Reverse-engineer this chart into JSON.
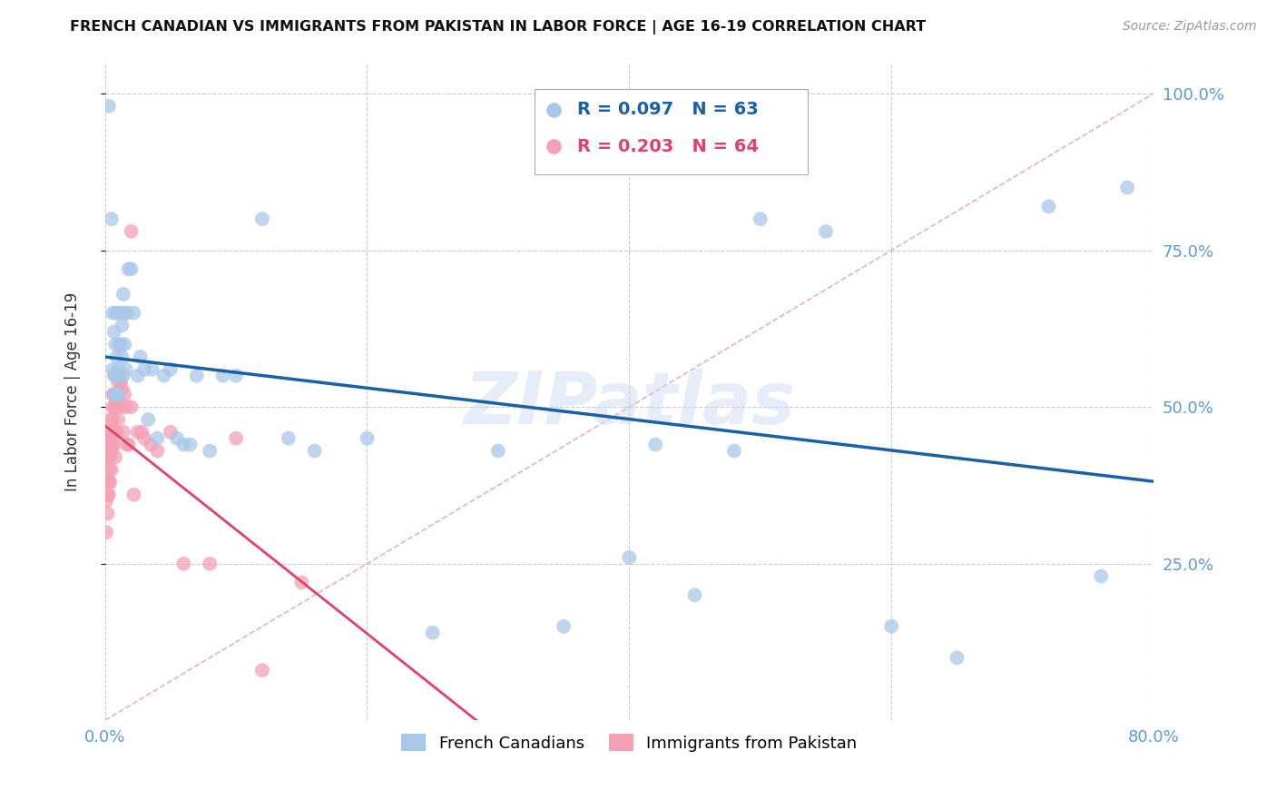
{
  "title": "FRENCH CANADIAN VS IMMIGRANTS FROM PAKISTAN IN LABOR FORCE | AGE 16-19 CORRELATION CHART",
  "source": "Source: ZipAtlas.com",
  "ylabel": "In Labor Force | Age 16-19",
  "legend_blue_label": "French Canadians",
  "legend_pink_label": "Immigrants from Pakistan",
  "r_blue": 0.097,
  "n_blue": 63,
  "r_pink": 0.203,
  "n_pink": 64,
  "blue_color": "#a8c8e8",
  "pink_color": "#f4a0b5",
  "blue_line_color": "#1a5fa8",
  "pink_line_color": "#e0406a",
  "diagonal_color": "#e8b0c0",
  "watermark": "ZIPatlas",
  "xmax": 0.8,
  "ymax": 1.05,
  "blue_scatter_x": [
    0.003,
    0.005,
    0.006,
    0.006,
    0.007,
    0.007,
    0.007,
    0.008,
    0.008,
    0.008,
    0.009,
    0.009,
    0.01,
    0.01,
    0.01,
    0.011,
    0.011,
    0.012,
    0.012,
    0.013,
    0.013,
    0.014,
    0.014,
    0.015,
    0.015,
    0.016,
    0.017,
    0.018,
    0.02,
    0.022,
    0.025,
    0.027,
    0.03,
    0.033,
    0.036,
    0.04,
    0.045,
    0.05,
    0.055,
    0.06,
    0.065,
    0.07,
    0.08,
    0.09,
    0.1,
    0.12,
    0.14,
    0.16,
    0.2,
    0.25,
    0.3,
    0.35,
    0.4,
    0.42,
    0.45,
    0.48,
    0.5,
    0.55,
    0.6,
    0.65,
    0.72,
    0.78,
    0.76
  ],
  "blue_scatter_y": [
    0.98,
    0.8,
    0.65,
    0.56,
    0.62,
    0.55,
    0.52,
    0.65,
    0.6,
    0.55,
    0.58,
    0.52,
    0.56,
    0.55,
    0.52,
    0.65,
    0.6,
    0.65,
    0.6,
    0.63,
    0.58,
    0.68,
    0.55,
    0.65,
    0.6,
    0.56,
    0.65,
    0.72,
    0.72,
    0.65,
    0.55,
    0.58,
    0.56,
    0.48,
    0.56,
    0.45,
    0.55,
    0.56,
    0.45,
    0.44,
    0.44,
    0.55,
    0.43,
    0.55,
    0.55,
    0.8,
    0.45,
    0.43,
    0.45,
    0.14,
    0.43,
    0.15,
    0.26,
    0.44,
    0.2,
    0.43,
    0.8,
    0.78,
    0.15,
    0.1,
    0.82,
    0.85,
    0.23
  ],
  "pink_scatter_x": [
    0.001,
    0.001,
    0.001,
    0.001,
    0.001,
    0.002,
    0.002,
    0.002,
    0.002,
    0.002,
    0.003,
    0.003,
    0.003,
    0.003,
    0.004,
    0.004,
    0.004,
    0.004,
    0.005,
    0.005,
    0.005,
    0.005,
    0.006,
    0.006,
    0.006,
    0.006,
    0.007,
    0.007,
    0.007,
    0.007,
    0.008,
    0.008,
    0.008,
    0.008,
    0.009,
    0.009,
    0.009,
    0.01,
    0.01,
    0.01,
    0.011,
    0.011,
    0.012,
    0.012,
    0.013,
    0.014,
    0.015,
    0.016,
    0.017,
    0.018,
    0.02,
    0.022,
    0.025,
    0.028,
    0.03,
    0.035,
    0.04,
    0.05,
    0.06,
    0.08,
    0.1,
    0.12,
    0.15,
    0.02
  ],
  "pink_scatter_y": [
    0.38,
    0.42,
    0.45,
    0.35,
    0.3,
    0.44,
    0.42,
    0.38,
    0.36,
    0.33,
    0.44,
    0.4,
    0.38,
    0.36,
    0.46,
    0.44,
    0.42,
    0.38,
    0.48,
    0.46,
    0.43,
    0.4,
    0.52,
    0.5,
    0.48,
    0.44,
    0.52,
    0.5,
    0.46,
    0.44,
    0.52,
    0.5,
    0.46,
    0.42,
    0.52,
    0.5,
    0.46,
    0.54,
    0.51,
    0.48,
    0.55,
    0.52,
    0.54,
    0.5,
    0.53,
    0.46,
    0.52,
    0.5,
    0.44,
    0.44,
    0.5,
    0.36,
    0.46,
    0.46,
    0.45,
    0.44,
    0.43,
    0.46,
    0.25,
    0.25,
    0.45,
    0.08,
    0.22,
    0.78
  ]
}
